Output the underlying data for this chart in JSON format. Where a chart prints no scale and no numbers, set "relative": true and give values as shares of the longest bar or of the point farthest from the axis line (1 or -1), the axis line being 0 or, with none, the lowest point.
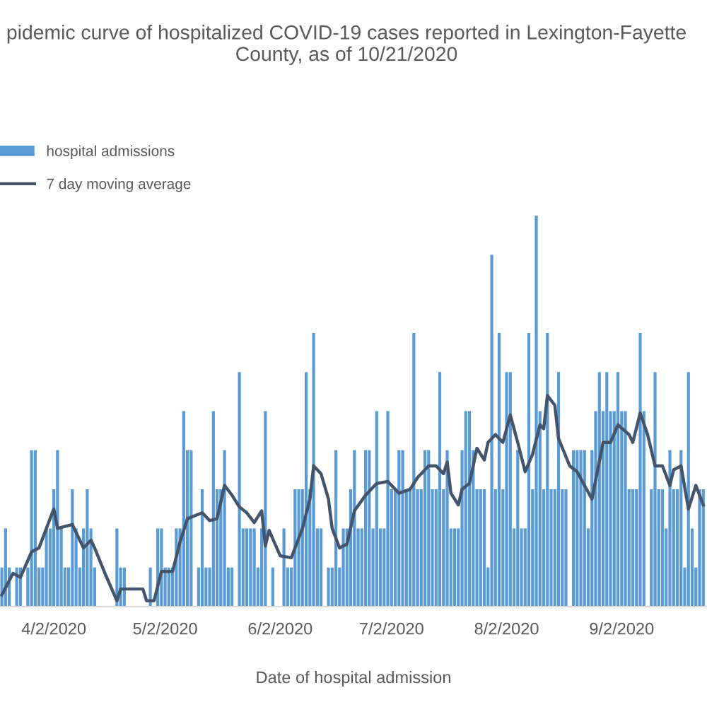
{
  "chart_data": {
    "type": "bar",
    "title": "pidemic curve of hospitalized COVID-19 cases reported in Lexington-Fayette\nCounty, as of 10/21/2020",
    "xlabel": "Date of hospital admission",
    "relative": true,
    "legend": "top left",
    "grid": false,
    "xlim": [
      "2020-03-18T12:00",
      "2020-09-25T00:00"
    ],
    "xticks": [
      {
        "value": "2020-04-02",
        "label": "4/2/2020"
      },
      {
        "value": "2020-05-02",
        "label": "5/2/2020"
      },
      {
        "value": "2020-06-02",
        "label": "6/2/2020"
      },
      {
        "value": "2020-07-02",
        "label": "7/2/2020"
      },
      {
        "value": "2020-08-02",
        "label": "8/2/2020"
      },
      {
        "value": "2020-09-02",
        "label": "9/2/2020"
      }
    ],
    "series": [
      {
        "name": "hospital admissions",
        "color": "#5b9bd5",
        "x": [
          "2020-03-19",
          "2020-03-20",
          "2020-03-21",
          "2020-03-22",
          "2020-03-23",
          "2020-03-24",
          "2020-03-25",
          "2020-03-26",
          "2020-03-27",
          "2020-03-28",
          "2020-03-29",
          "2020-03-30",
          "2020-03-31",
          "2020-04-01",
          "2020-04-02",
          "2020-04-03",
          "2020-04-04",
          "2020-04-05",
          "2020-04-06",
          "2020-04-07",
          "2020-04-08",
          "2020-04-09",
          "2020-04-10",
          "2020-04-11",
          "2020-04-12",
          "2020-04-13",
          "2020-04-14",
          "2020-04-15",
          "2020-04-16",
          "2020-04-17",
          "2020-04-18",
          "2020-04-19",
          "2020-04-20",
          "2020-04-21",
          "2020-04-22",
          "2020-04-23",
          "2020-04-24",
          "2020-04-25",
          "2020-04-26",
          "2020-04-27",
          "2020-04-28",
          "2020-04-29",
          "2020-04-30",
          "2020-05-01",
          "2020-05-02",
          "2020-05-03",
          "2020-05-04",
          "2020-05-05",
          "2020-05-06",
          "2020-05-07",
          "2020-05-08",
          "2020-05-09",
          "2020-05-10",
          "2020-05-11",
          "2020-05-12",
          "2020-05-13",
          "2020-05-14",
          "2020-05-15",
          "2020-05-16",
          "2020-05-17",
          "2020-05-18",
          "2020-05-19",
          "2020-05-20",
          "2020-05-21",
          "2020-05-22",
          "2020-05-23",
          "2020-05-24",
          "2020-05-25",
          "2020-05-26",
          "2020-05-27",
          "2020-05-28",
          "2020-05-29",
          "2020-05-30",
          "2020-05-31",
          "2020-06-01",
          "2020-06-02",
          "2020-06-03",
          "2020-06-04",
          "2020-06-05",
          "2020-06-06",
          "2020-06-07",
          "2020-06-08",
          "2020-06-09",
          "2020-06-10",
          "2020-06-11",
          "2020-06-12",
          "2020-06-13",
          "2020-06-14",
          "2020-06-15",
          "2020-06-16",
          "2020-06-17",
          "2020-06-18",
          "2020-06-19",
          "2020-06-20",
          "2020-06-21",
          "2020-06-22",
          "2020-06-23",
          "2020-06-24",
          "2020-06-25",
          "2020-06-26",
          "2020-06-27",
          "2020-06-28",
          "2020-06-29",
          "2020-06-30",
          "2020-07-01",
          "2020-07-02",
          "2020-07-03",
          "2020-07-04",
          "2020-07-05",
          "2020-07-06",
          "2020-07-07",
          "2020-07-08",
          "2020-07-09",
          "2020-07-10",
          "2020-07-11",
          "2020-07-12",
          "2020-07-13",
          "2020-07-14",
          "2020-07-15",
          "2020-07-16",
          "2020-07-17",
          "2020-07-18",
          "2020-07-19",
          "2020-07-20",
          "2020-07-21",
          "2020-07-22",
          "2020-07-23",
          "2020-07-24",
          "2020-07-25",
          "2020-07-26",
          "2020-07-27",
          "2020-07-28",
          "2020-07-29",
          "2020-07-30",
          "2020-07-31",
          "2020-08-01",
          "2020-08-02",
          "2020-08-03",
          "2020-08-04",
          "2020-08-05",
          "2020-08-06",
          "2020-08-07",
          "2020-08-08",
          "2020-08-09",
          "2020-08-10",
          "2020-08-11",
          "2020-08-12",
          "2020-08-13",
          "2020-08-14",
          "2020-08-15",
          "2020-08-16",
          "2020-08-17",
          "2020-08-18",
          "2020-08-19",
          "2020-08-20",
          "2020-08-21",
          "2020-08-22",
          "2020-08-23",
          "2020-08-24",
          "2020-08-25",
          "2020-08-26",
          "2020-08-27",
          "2020-08-28",
          "2020-08-29",
          "2020-08-30",
          "2020-08-31",
          "2020-09-01",
          "2020-09-02",
          "2020-09-03",
          "2020-09-04",
          "2020-09-05",
          "2020-09-06",
          "2020-09-07",
          "2020-09-08",
          "2020-09-09",
          "2020-09-10",
          "2020-09-11",
          "2020-09-12",
          "2020-09-13",
          "2020-09-14",
          "2020-09-15",
          "2020-09-16",
          "2020-09-17",
          "2020-09-18",
          "2020-09-19",
          "2020-09-20",
          "2020-09-21",
          "2020-09-22",
          "2020-09-23",
          "2020-09-24"
        ],
        "values": [
          0.1,
          0.2,
          0.1,
          0,
          0.1,
          0.1,
          0,
          0.1,
          0.4,
          0.4,
          0.1,
          0.1,
          0.2,
          0.2,
          0.3,
          0.4,
          0.2,
          0.1,
          0.1,
          0.3,
          0.2,
          0.1,
          0.2,
          0.3,
          0.2,
          0.1,
          0,
          0,
          0,
          0,
          0,
          0.2,
          0.1,
          0.1,
          0,
          0,
          0,
          0,
          0,
          0,
          0.1,
          0,
          0.2,
          0.2,
          0.1,
          0.1,
          0.1,
          0.2,
          0.2,
          0.5,
          0.4,
          0.4,
          0,
          0.1,
          0.3,
          0.1,
          0.1,
          0.5,
          0.3,
          0.3,
          0.4,
          0.1,
          0.1,
          0,
          0.6,
          0.2,
          0.2,
          0.2,
          0.2,
          0.1,
          0.2,
          0.5,
          0,
          0.1,
          0,
          0,
          0.2,
          0.1,
          0.1,
          0.3,
          0.3,
          0.3,
          0.6,
          0.3,
          0.7,
          0.2,
          0.2,
          0,
          0.1,
          0.1,
          0.4,
          0.1,
          0.2,
          0.2,
          0.3,
          0.4,
          0.2,
          0.2,
          0.4,
          0.4,
          0.2,
          0.5,
          0.2,
          0.2,
          0.5,
          0.3,
          0.3,
          0.4,
          0.4,
          0.3,
          0.3,
          0.7,
          0.3,
          0.3,
          0.4,
          0.4,
          0.3,
          0.3,
          0.6,
          0.3,
          0.4,
          0.2,
          0.2,
          0.2,
          0.4,
          0.5,
          0.5,
          0.4,
          0.3,
          0.3,
          0.3,
          0.1,
          0.9,
          0.3,
          0.7,
          0.3,
          0.6,
          0.6,
          0.2,
          0.4,
          0.2,
          0.2,
          0.7,
          0.3,
          1.0,
          0.5,
          0.3,
          0.7,
          0.3,
          0.3,
          0.6,
          0.3,
          0.3,
          0,
          0.4,
          0.4,
          0.4,
          0.4,
          0.2,
          0.4,
          0.5,
          0.6,
          0.5,
          0.6,
          0.5,
          0.5,
          0.6,
          0.5,
          0.5,
          0.3,
          0.3,
          0.3,
          0.7,
          0.5,
          0,
          0.3,
          0.6,
          0.3,
          0.3,
          0.2,
          0.4,
          0.3,
          0.3,
          0.4,
          0.1,
          0.6,
          0.2,
          0.1,
          0.3,
          0.3
        ]
      },
      {
        "name": "7 day moving average",
        "type": "line",
        "color": "#44546a",
        "marker": "none",
        "line_style": "solid",
        "x": [
          "2020-03-19",
          "2020-03-22",
          "2020-03-24",
          "2020-03-27",
          "2020-03-29",
          "2020-03-31",
          "2020-04-02",
          "2020-04-03",
          "2020-04-07",
          "2020-04-10",
          "2020-04-12",
          "2020-04-13",
          "2020-04-16",
          "2020-04-19",
          "2020-04-20",
          "2020-04-26",
          "2020-04-27",
          "2020-04-29",
          "2020-05-01",
          "2020-05-04",
          "2020-05-06",
          "2020-05-08",
          "2020-05-12",
          "2020-05-14",
          "2020-05-16",
          "2020-05-18",
          "2020-05-20",
          "2020-05-22",
          "2020-05-24",
          "2020-05-26",
          "2020-05-28",
          "2020-05-29",
          "2020-05-30",
          "2020-06-02",
          "2020-06-05",
          "2020-06-08",
          "2020-06-10",
          "2020-06-11",
          "2020-06-13",
          "2020-06-15",
          "2020-06-16",
          "2020-06-18",
          "2020-06-20",
          "2020-06-22",
          "2020-06-25",
          "2020-06-28",
          "2020-07-01",
          "2020-07-04",
          "2020-07-07",
          "2020-07-09",
          "2020-07-12",
          "2020-07-14",
          "2020-07-16",
          "2020-07-17",
          "2020-07-18",
          "2020-07-20",
          "2020-07-21",
          "2020-07-23",
          "2020-07-25",
          "2020-07-27",
          "2020-07-28",
          "2020-07-30",
          "2020-08-01",
          "2020-08-03",
          "2020-08-05",
          "2020-08-07",
          "2020-08-09",
          "2020-08-11",
          "2020-08-12",
          "2020-08-13",
          "2020-08-15",
          "2020-08-16",
          "2020-08-19",
          "2020-08-21",
          "2020-08-25",
          "2020-08-28",
          "2020-08-30",
          "2020-09-01",
          "2020-09-04",
          "2020-09-05",
          "2020-09-07",
          "2020-09-09",
          "2020-09-11",
          "2020-09-13",
          "2020-09-15",
          "2020-09-16",
          "2020-09-18",
          "2020-09-20",
          "2020-09-22",
          "2020-09-24"
        ],
        "values": [
          0.03,
          0.085,
          0.075,
          0.14,
          0.15,
          0.2,
          0.25,
          0.2,
          0.21,
          0.15,
          0.17,
          0.15,
          0.08,
          0.015,
          0.045,
          0.045,
          0.015,
          0.015,
          0.09,
          0.09,
          0.165,
          0.225,
          0.24,
          0.22,
          0.225,
          0.31,
          0.285,
          0.255,
          0.24,
          0.215,
          0.245,
          0.155,
          0.195,
          0.13,
          0.125,
          0.2,
          0.275,
          0.36,
          0.34,
          0.275,
          0.2,
          0.15,
          0.16,
          0.245,
          0.285,
          0.315,
          0.32,
          0.29,
          0.3,
          0.33,
          0.36,
          0.36,
          0.34,
          0.37,
          0.29,
          0.26,
          0.3,
          0.315,
          0.405,
          0.375,
          0.42,
          0.44,
          0.42,
          0.49,
          0.42,
          0.345,
          0.39,
          0.465,
          0.455,
          0.54,
          0.515,
          0.43,
          0.36,
          0.345,
          0.275,
          0.42,
          0.42,
          0.465,
          0.44,
          0.42,
          0.495,
          0.44,
          0.36,
          0.36,
          0.31,
          0.35,
          0.36,
          0.25,
          0.31,
          0.26
        ]
      }
    ]
  }
}
